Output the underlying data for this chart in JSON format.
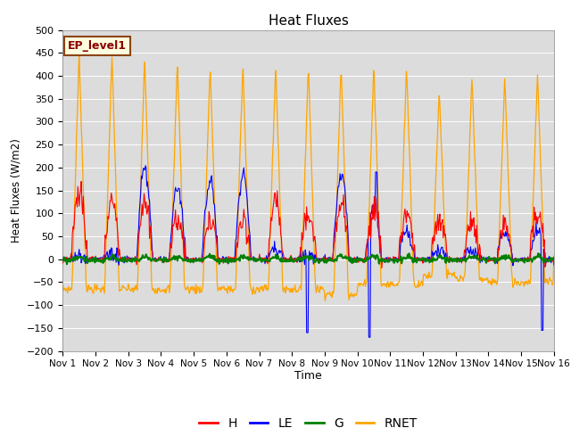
{
  "title": "Heat Fluxes",
  "ylabel": "Heat Fluxes (W/m2)",
  "xlabel": "Time",
  "annotation": "EP_level1",
  "ylim": [
    -200,
    500
  ],
  "yticks": [
    -200,
    -150,
    -100,
    -50,
    0,
    50,
    100,
    150,
    200,
    250,
    300,
    350,
    400,
    450,
    500
  ],
  "colors": {
    "H": "red",
    "LE": "blue",
    "G": "green",
    "RNET": "orange"
  },
  "xtick_labels": [
    "Nov 1",
    "Nov 2",
    "Nov 3",
    "Nov 4",
    "Nov 5",
    "Nov 6",
    "Nov 7",
    "Nov 8",
    "Nov 9",
    "Nov 10",
    "Nov 11",
    "Nov 12",
    "Nov 13",
    "Nov 14",
    "Nov 15",
    "Nov 16"
  ],
  "legend_entries": [
    "H",
    "LE",
    "G",
    "RNET"
  ],
  "bg_color": "#dcdcdc"
}
